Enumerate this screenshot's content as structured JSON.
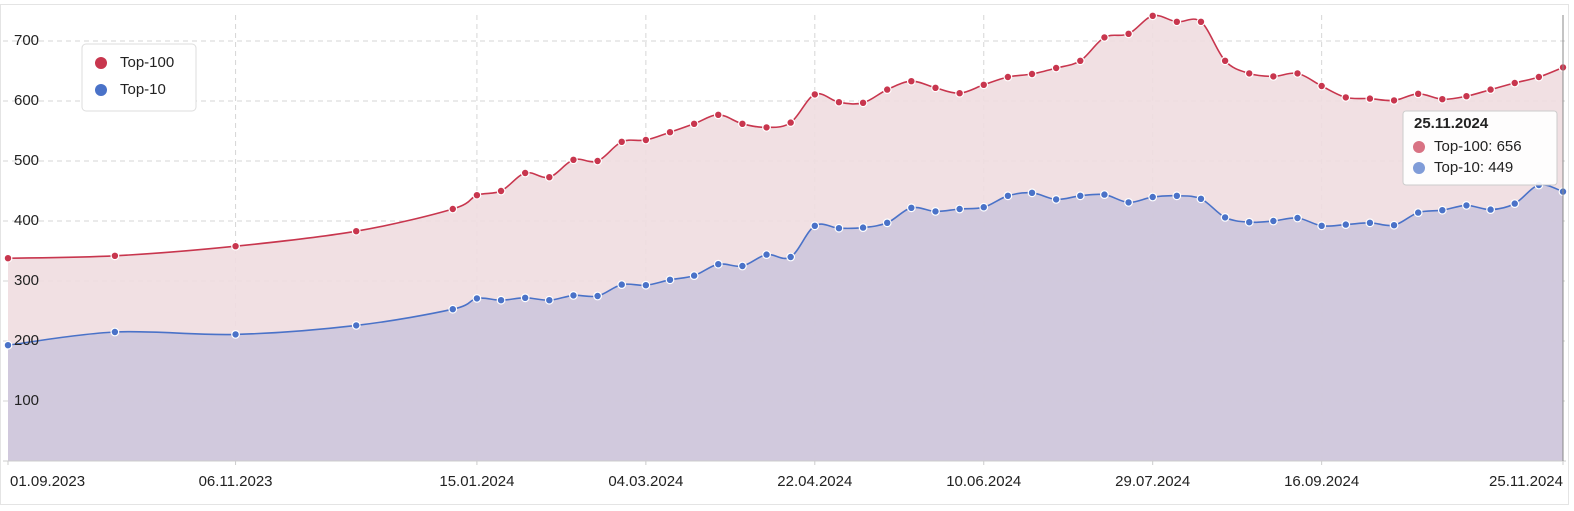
{
  "chart_data": {
    "type": "area",
    "x": [
      "01.09.2023",
      "02.10.2023",
      "06.11.2023",
      "11.12.2023",
      "08.01.2024",
      "15.01.2024",
      "22.01.2024",
      "29.01.2024",
      "05.02.2024",
      "12.02.2024",
      "19.02.2024",
      "26.02.2024",
      "04.03.2024",
      "11.03.2024",
      "18.03.2024",
      "25.03.2024",
      "01.04.2024",
      "08.04.2024",
      "15.04.2024",
      "22.04.2024",
      "29.04.2024",
      "06.05.2024",
      "13.05.2024",
      "20.05.2024",
      "27.05.2024",
      "03.06.2024",
      "10.06.2024",
      "17.06.2024",
      "24.06.2024",
      "01.07.2024",
      "08.07.2024",
      "15.07.2024",
      "22.07.2024",
      "29.07.2024",
      "05.08.2024",
      "12.08.2024",
      "19.08.2024",
      "26.08.2024",
      "02.09.2024",
      "09.09.2024",
      "16.09.2024",
      "23.09.2024",
      "30.09.2024",
      "07.10.2024",
      "14.10.2024",
      "21.10.2024",
      "28.10.2024",
      "04.11.2024",
      "11.11.2024",
      "18.11.2024",
      "25.11.2024"
    ],
    "series": [
      {
        "name": "Top-100",
        "color": "#c8364e",
        "fill": "#f0dde0",
        "values": [
          338,
          342,
          358,
          383,
          420,
          443,
          450,
          480,
          473,
          502,
          500,
          532,
          535,
          548,
          562,
          577,
          562,
          556,
          564,
          611,
          598,
          597,
          619,
          633,
          622,
          613,
          627,
          640,
          645,
          655,
          667,
          706,
          712,
          742,
          732,
          732,
          667,
          646,
          641,
          646,
          625,
          606,
          604,
          601,
          612,
          603,
          608,
          619,
          630,
          640,
          656
        ]
      },
      {
        "name": "Top-10",
        "color": "#4a72c8",
        "fill": "#cdc6dc",
        "values": [
          193,
          215,
          211,
          226,
          253,
          271,
          268,
          272,
          268,
          276,
          275,
          294,
          293,
          302,
          309,
          328,
          325,
          344,
          340,
          392,
          388,
          389,
          397,
          422,
          416,
          420,
          423,
          442,
          447,
          436,
          442,
          444,
          431,
          440,
          442,
          437,
          406,
          398,
          400,
          405,
          392,
          394,
          397,
          393,
          414,
          418,
          426,
          419,
          429,
          460,
          449
        ]
      }
    ],
    "xlim": [
      "01.09.2023",
      "25.11.2024"
    ],
    "xticks": [
      "01.09.2023",
      "06.11.2023",
      "15.01.2024",
      "04.03.2024",
      "22.04.2024",
      "10.06.2024",
      "29.07.2024",
      "16.09.2024",
      "25.11.2024"
    ],
    "ylim": [
      0,
      760
    ],
    "yticks": [
      100,
      200,
      300,
      400,
      500,
      600,
      700
    ],
    "grid": true,
    "legend": "top-left"
  }
}
